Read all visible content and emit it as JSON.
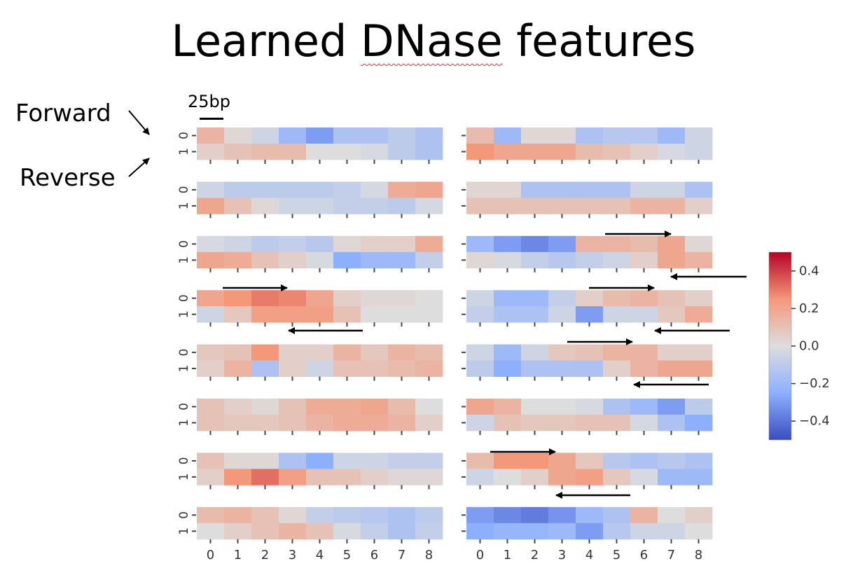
{
  "title": {
    "prefix": "Learned ",
    "underlined": "DNase",
    "suffix": " features"
  },
  "labels": {
    "forward": "Forward",
    "reverse": "Reverse",
    "scale": "25bp"
  },
  "chart_data": {
    "type": "heatmap",
    "title": "Learned DNase features",
    "x_ticks": [
      "0",
      "1",
      "2",
      "3",
      "4",
      "5",
      "6",
      "7",
      "8"
    ],
    "y_ticks": [
      "0",
      "1"
    ],
    "y_tick_meaning": {
      "0": "Forward",
      "1": "Reverse"
    },
    "colormap": "coolwarm",
    "vmin": -0.5,
    "vmax": 0.5,
    "colorbar_ticks": [
      "0.4",
      "0.2",
      "0.0",
      "−0.2",
      "−0.4"
    ],
    "colorbar_tick_values": [
      0.4,
      0.2,
      0.0,
      -0.2,
      -0.4
    ],
    "layout": "8 rows x 2 columns of 2x9 heatmaps",
    "panels": [
      {
        "row": 0,
        "col": 0,
        "values": [
          [
            0.15,
            0.02,
            -0.05,
            -0.2,
            -0.3,
            -0.15,
            -0.15,
            -0.1,
            -0.15
          ],
          [
            0.05,
            0.1,
            0.12,
            0.12,
            0.0,
            0.0,
            -0.02,
            -0.1,
            -0.15
          ]
        ]
      },
      {
        "row": 0,
        "col": 1,
        "values": [
          [
            0.12,
            -0.2,
            0.02,
            0.02,
            -0.15,
            -0.12,
            -0.12,
            -0.2,
            -0.05
          ],
          [
            0.25,
            0.2,
            0.2,
            0.2,
            0.12,
            0.1,
            0.05,
            -0.02,
            -0.05
          ]
        ]
      },
      {
        "row": 1,
        "col": 0,
        "values": [
          [
            -0.05,
            -0.1,
            -0.1,
            -0.1,
            -0.1,
            -0.08,
            -0.03,
            0.18,
            0.2
          ],
          [
            0.2,
            0.1,
            0.02,
            -0.05,
            -0.05,
            -0.08,
            -0.08,
            -0.1,
            -0.03
          ]
        ]
      },
      {
        "row": 1,
        "col": 1,
        "values": [
          [
            0.03,
            0.03,
            -0.15,
            -0.15,
            -0.15,
            -0.15,
            -0.05,
            -0.05,
            -0.15
          ],
          [
            0.1,
            0.1,
            0.1,
            0.1,
            0.1,
            0.1,
            0.15,
            0.15,
            0.05
          ]
        ]
      },
      {
        "row": 2,
        "col": 0,
        "values": [
          [
            -0.02,
            -0.05,
            -0.1,
            -0.08,
            -0.12,
            0.02,
            0.05,
            0.05,
            0.18
          ],
          [
            0.2,
            0.18,
            0.1,
            0.05,
            -0.02,
            -0.25,
            -0.2,
            -0.2,
            -0.08
          ]
        ]
      },
      {
        "row": 2,
        "col": 1,
        "values": [
          [
            -0.2,
            -0.3,
            -0.35,
            -0.3,
            0.15,
            0.15,
            0.12,
            0.2,
            0.02
          ],
          [
            0.02,
            -0.02,
            -0.08,
            -0.12,
            -0.08,
            -0.05,
            0.05,
            0.2,
            0.15
          ]
        ]
      },
      {
        "row": 3,
        "col": 0,
        "values": [
          [
            0.2,
            0.25,
            0.3,
            0.28,
            0.2,
            0.05,
            0.02,
            0.02,
            0.0
          ],
          [
            -0.05,
            0.08,
            0.22,
            0.22,
            0.22,
            0.1,
            0.0,
            0.0,
            0.0
          ]
        ]
      },
      {
        "row": 3,
        "col": 1,
        "values": [
          [
            -0.05,
            -0.2,
            -0.2,
            -0.08,
            0.05,
            0.12,
            0.15,
            0.1,
            0.05
          ],
          [
            -0.08,
            -0.15,
            -0.15,
            -0.05,
            -0.3,
            -0.05,
            -0.05,
            0.08,
            0.18
          ]
        ]
      },
      {
        "row": 4,
        "col": 0,
        "values": [
          [
            0.08,
            0.1,
            0.25,
            0.05,
            0.05,
            0.15,
            0.08,
            0.15,
            0.12
          ],
          [
            0.05,
            0.15,
            -0.15,
            0.05,
            -0.05,
            0.1,
            0.1,
            0.12,
            0.15
          ]
        ]
      },
      {
        "row": 4,
        "col": 1,
        "values": [
          [
            -0.05,
            -0.2,
            -0.05,
            0.08,
            0.1,
            0.15,
            0.15,
            0.05,
            0.05
          ],
          [
            -0.1,
            -0.25,
            -0.15,
            -0.15,
            -0.15,
            0.05,
            0.15,
            0.2,
            0.2
          ]
        ]
      },
      {
        "row": 5,
        "col": 0,
        "values": [
          [
            0.1,
            0.05,
            0.02,
            0.1,
            0.18,
            0.18,
            0.2,
            0.12,
            0.0
          ],
          [
            0.1,
            0.08,
            0.08,
            0.1,
            0.15,
            0.18,
            0.18,
            0.15,
            0.05
          ]
        ]
      },
      {
        "row": 5,
        "col": 1,
        "values": [
          [
            0.2,
            0.15,
            0.0,
            0.0,
            -0.02,
            -0.15,
            -0.2,
            -0.3,
            -0.1
          ],
          [
            -0.05,
            0.1,
            0.08,
            0.08,
            0.1,
            0.1,
            -0.03,
            -0.15,
            -0.25
          ]
        ]
      },
      {
        "row": 6,
        "col": 0,
        "values": [
          [
            0.1,
            0.02,
            0.02,
            -0.15,
            -0.25,
            -0.05,
            -0.05,
            -0.08,
            -0.08
          ],
          [
            0.05,
            0.25,
            0.32,
            0.22,
            0.1,
            0.1,
            0.05,
            0.02,
            0.02
          ]
        ]
      },
      {
        "row": 6,
        "col": 1,
        "values": [
          [
            0.12,
            0.25,
            0.25,
            0.2,
            0.08,
            -0.12,
            -0.15,
            -0.12,
            -0.15
          ],
          [
            -0.05,
            0.0,
            0.05,
            0.2,
            0.22,
            0.08,
            -0.02,
            -0.2,
            -0.2
          ]
        ]
      },
      {
        "row": 7,
        "col": 0,
        "values": [
          [
            0.12,
            0.15,
            0.1,
            0.02,
            -0.08,
            -0.1,
            -0.12,
            -0.15,
            -0.1
          ],
          [
            0.0,
            0.05,
            0.1,
            0.15,
            0.1,
            -0.02,
            -0.08,
            -0.15,
            -0.08
          ]
        ]
      },
      {
        "row": 7,
        "col": 1,
        "values": [
          [
            -0.3,
            -0.35,
            -0.38,
            -0.32,
            -0.2,
            -0.15,
            0.15,
            0.0,
            0.05
          ],
          [
            -0.25,
            -0.22,
            -0.22,
            -0.2,
            -0.3,
            -0.12,
            -0.05,
            -0.05,
            0.0
          ]
        ]
      }
    ]
  },
  "colors": {
    "arrow": "#000000",
    "text": "#000000",
    "tick": "#444444"
  }
}
